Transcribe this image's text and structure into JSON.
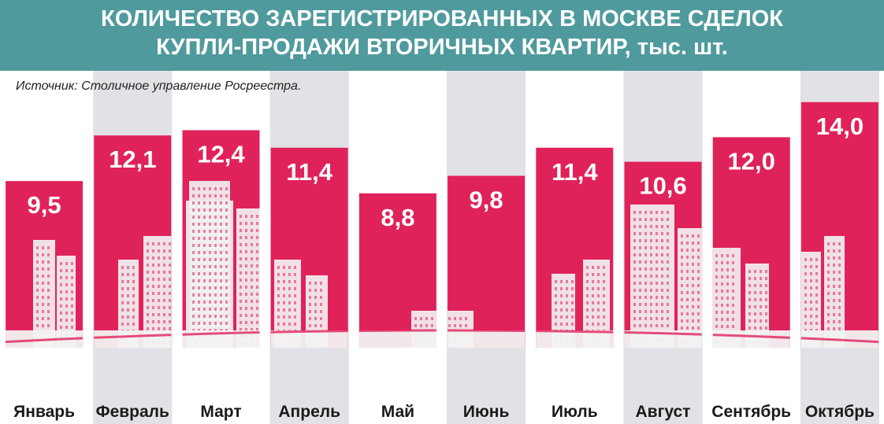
{
  "header": {
    "title_line1": "КОЛИЧЕСТВО ЗАРЕГИСТРИРОВАННЫХ В МОСКВЕ СДЕЛОК",
    "title_line2": "КУПЛИ-ПРОДАЖИ ВТОРИЧНЫХ КВАРТИР, тыс. шт."
  },
  "source": "Источник:  Столичное управление Росреестра.",
  "colors": {
    "header_bg": "#4f9a9c",
    "bar": "#e0225a",
    "stripe": "#e2e2e6",
    "skyline": "#f2f2f2"
  },
  "chart_data": {
    "type": "bar",
    "categories": [
      "Январь",
      "Февраль",
      "Март",
      "Апрель",
      "Май",
      "Июнь",
      "Июль",
      "Август",
      "Сентябрь",
      "Октябрь"
    ],
    "values": [
      9.5,
      12.1,
      12.4,
      11.4,
      8.8,
      9.8,
      11.4,
      10.6,
      12.0,
      14.0
    ],
    "labels": [
      "9,5",
      "12,1",
      "12,4",
      "11,4",
      "8,8",
      "9,8",
      "11,4",
      "10,6",
      "12,0",
      "14,0"
    ],
    "title": "КОЛИЧЕСТВО ЗАРЕГИСТРИРОВАННЫХ В МОСКВЕ СДЕЛОК КУПЛИ-ПРОДАЖИ ВТОРИЧНЫХ КВАРТИР, тыс. шт.",
    "grid": false,
    "legend": "none"
  }
}
